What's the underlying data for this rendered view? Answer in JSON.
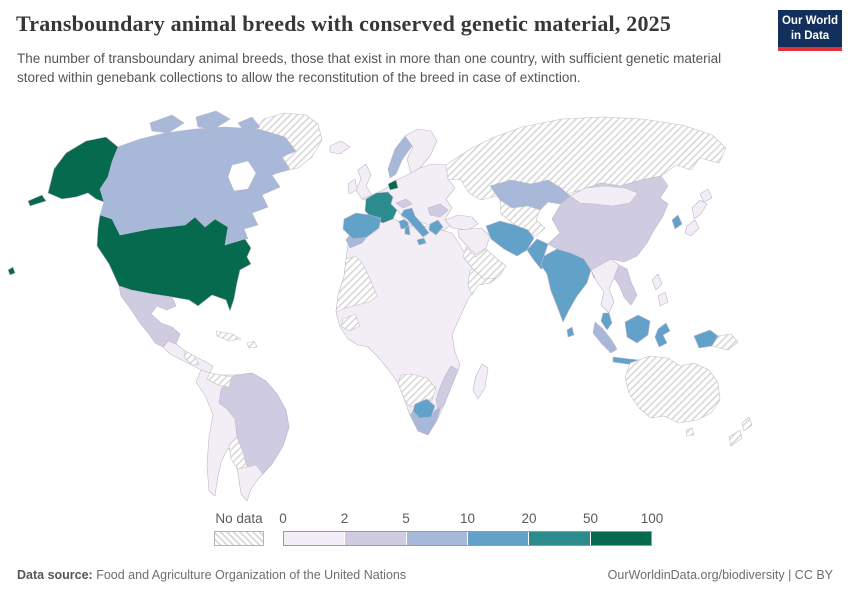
{
  "header": {
    "title": "Transboundary animal breeds with conserved genetic material, 2025",
    "subtitle": "The number of transboundary animal breeds, those that exist in more than one country, with sufficient genetic material stored within genebank collections to allow the reconstitution of the breed in case of extinction.",
    "logo": {
      "line1": "Our World",
      "line2": "in Data",
      "bg_color": "#12305b",
      "accent_color": "#e0303e"
    }
  },
  "footer": {
    "source_label": "Data source:",
    "source_text": " Food and Agriculture Organization of the United Nations",
    "right_text": "OurWorldinData.org/biodiversity | CC BY"
  },
  "chart_data": {
    "type": "choropleth",
    "title": "Transboundary animal breeds with conserved genetic material, 2025",
    "year": "2025",
    "legend": {
      "no_data_label": "No data",
      "tick_labels": [
        "0",
        "2",
        "5",
        "10",
        "20",
        "50",
        "100"
      ],
      "bins": [
        {
          "range": "0-2",
          "color": "#f3eef5"
        },
        {
          "range": "2-5",
          "color": "#cfcce2"
        },
        {
          "range": "5-10",
          "color": "#a7b8d8"
        },
        {
          "range": "10-20",
          "color": "#62a2c9"
        },
        {
          "range": "20-50",
          "color": "#2b8b8d"
        },
        {
          "range": "50-100",
          "color": "#066a4f"
        }
      ],
      "no_data_pattern": "diagonal-hatch",
      "no_data_stripe_color": "#d8d8d8"
    },
    "regions": {
      "greenland": "no-data",
      "canada": "5-10",
      "united-states": "50-100",
      "mexico": "2-5",
      "central-america": "0-2",
      "honduras-nicaragua": "no-data",
      "cuba": "no-data",
      "hispaniola": "no-data",
      "south-america-other": "0-2",
      "brazil": "2-5",
      "venezuela": "no-data",
      "bolivia": "no-data",
      "iceland": "0-2",
      "united-kingdom": "0-2",
      "ireland": "0-2",
      "norway": "5-10",
      "sweden-finland": "0-2",
      "europe-mainland": "0-2",
      "france": "20-50",
      "netherlands": "50-100",
      "spain-portugal": "10-20",
      "italy": "10-20",
      "alps": "2-5",
      "balkans": "2-5",
      "greece": "10-20",
      "russia": "no-data",
      "kazakhstan": "5-10",
      "central-asia": "no-data",
      "turkey": "0-2",
      "middle-east": "0-2",
      "saudi-arabia": "no-data",
      "iran": "10-20",
      "pakistan": "10-20",
      "india": "10-20",
      "sri-lanka": "10-20",
      "bangladesh": "10-20",
      "china": "2-5",
      "mongolia": "0-2",
      "south-korea": "10-20",
      "japan": "0-2",
      "se-asia-mainland": "0-2",
      "vietnam": "2-5",
      "malaysia": "10-20",
      "sumatra": "5-10",
      "indonesia-islands": "10-20",
      "papua-indonesia": "10-20",
      "papua-new-guinea": "no-data",
      "philippines": "0-2",
      "australia": "no-data",
      "new-zealand": "no-data",
      "africa-other": "0-2",
      "morocco": "5-10",
      "tunisia": "10-20",
      "mali-mauritania": "no-data",
      "west-africa": "no-data",
      "somalia": "no-data",
      "angola-zambia": "no-data",
      "botswana": "10-20",
      "south-africa": "5-10",
      "mozambique": "2-5",
      "madagascar": "0-2"
    }
  }
}
